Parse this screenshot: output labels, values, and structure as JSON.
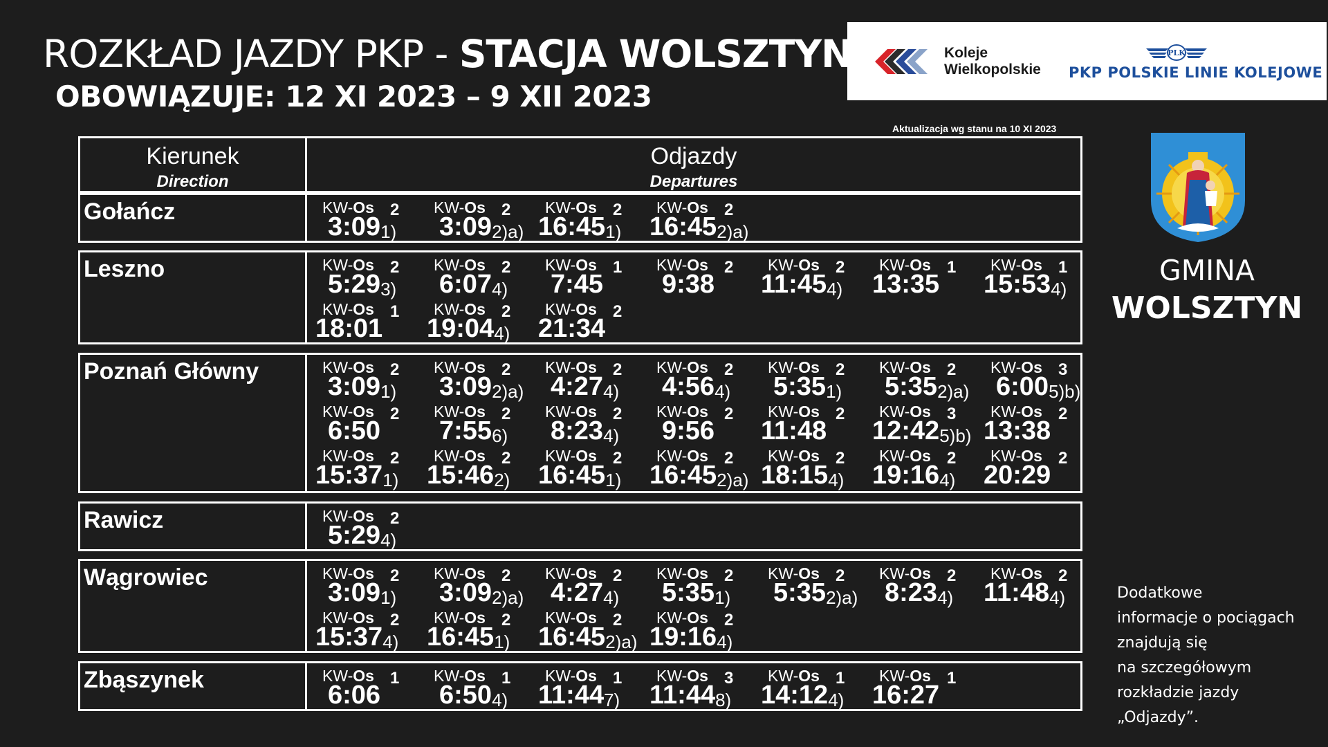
{
  "header": {
    "title_prefix": "ROZKŁAD JAZDY PKP - ",
    "title_station": "STACJA WOLSZTYN",
    "validity": "OBOWIĄZUJE: 12 XI 2023 – 9 XII 2023",
    "update_note": "Aktualizacja wg stanu na 10 XI 2023"
  },
  "logos": {
    "kw_line1": "Koleje",
    "kw_line2": "Wielkopolskie",
    "plk_mark": "PLK",
    "plk_name": "PKP POLSKIE LINIE KOLEJOWE S.A."
  },
  "table_header": {
    "direction_pl": "Kierunek",
    "direction_en": "Direction",
    "departures_pl": "Odjazdy",
    "departures_en": "Departures"
  },
  "sidebar": {
    "gmina_line1": "GMINA",
    "gmina_line2": "WOLSZTYN",
    "info_lines": [
      "Dodatkowe",
      "informacje o pociągach",
      "znajdują się",
      "na szczegółowym",
      "rozkładzie jazdy",
      "„Odjazdy”."
    ]
  },
  "colors": {
    "background": "#1d1d1d",
    "plk_blue": "#1d4f9c",
    "kw_red": "#d8232a",
    "kw_blue": "#2a4c9a"
  },
  "category_prefix": "KW-",
  "category_suffix": "Os",
  "destinations": [
    {
      "name": "Gołańcz",
      "rows": [
        [
          {
            "cls": "2",
            "time": "3:09",
            "note": "1)"
          },
          {
            "cls": "2",
            "time": "3:09",
            "note": "2)a)"
          },
          {
            "cls": "2",
            "time": "16:45",
            "note": "1)"
          },
          {
            "cls": "2",
            "time": "16:45",
            "note": "2)a)"
          }
        ]
      ]
    },
    {
      "name": "Leszno",
      "rows": [
        [
          {
            "cls": "2",
            "time": "5:29",
            "note": "3)"
          },
          {
            "cls": "2",
            "time": "6:07",
            "note": "4)"
          },
          {
            "cls": "1",
            "time": "7:45",
            "note": ""
          },
          {
            "cls": "2",
            "time": "9:38",
            "note": ""
          },
          {
            "cls": "2",
            "time": "11:45",
            "note": "4)"
          },
          {
            "cls": "1",
            "time": "13:35",
            "note": ""
          },
          {
            "cls": "1",
            "time": "15:53",
            "note": "4)"
          }
        ],
        [
          {
            "cls": "1",
            "time": "18:01",
            "note": ""
          },
          {
            "cls": "2",
            "time": "19:04",
            "note": "4)"
          },
          {
            "cls": "2",
            "time": "21:34",
            "note": ""
          }
        ]
      ]
    },
    {
      "name": "Poznań Główny",
      "rows": [
        [
          {
            "cls": "2",
            "time": "3:09",
            "note": "1)"
          },
          {
            "cls": "2",
            "time": "3:09",
            "note": "2)a)"
          },
          {
            "cls": "2",
            "time": "4:27",
            "note": "4)"
          },
          {
            "cls": "2",
            "time": "4:56",
            "note": "4)"
          },
          {
            "cls": "2",
            "time": "5:35",
            "note": "1)"
          },
          {
            "cls": "2",
            "time": "5:35",
            "note": "2)a)"
          },
          {
            "cls": "3",
            "time": "6:00",
            "note": "5)b)"
          }
        ],
        [
          {
            "cls": "2",
            "time": "6:50",
            "note": ""
          },
          {
            "cls": "2",
            "time": "7:55",
            "note": "6)"
          },
          {
            "cls": "2",
            "time": "8:23",
            "note": "4)"
          },
          {
            "cls": "2",
            "time": "9:56",
            "note": ""
          },
          {
            "cls": "2",
            "time": "11:48",
            "note": ""
          },
          {
            "cls": "3",
            "time": "12:42",
            "note": "5)b)"
          },
          {
            "cls": "2",
            "time": "13:38",
            "note": ""
          }
        ],
        [
          {
            "cls": "2",
            "time": "15:37",
            "note": "1)"
          },
          {
            "cls": "2",
            "time": "15:46",
            "note": "2)"
          },
          {
            "cls": "2",
            "time": "16:45",
            "note": "1)"
          },
          {
            "cls": "2",
            "time": "16:45",
            "note": "2)a)"
          },
          {
            "cls": "2",
            "time": "18:15",
            "note": "4)"
          },
          {
            "cls": "2",
            "time": "19:16",
            "note": "4)"
          },
          {
            "cls": "2",
            "time": "20:29",
            "note": ""
          }
        ]
      ]
    },
    {
      "name": "Rawicz",
      "rows": [
        [
          {
            "cls": "2",
            "time": "5:29",
            "note": "4)"
          }
        ]
      ]
    },
    {
      "name": "Wągrowiec",
      "rows": [
        [
          {
            "cls": "2",
            "time": "3:09",
            "note": "1)"
          },
          {
            "cls": "2",
            "time": "3:09",
            "note": "2)a)"
          },
          {
            "cls": "2",
            "time": "4:27",
            "note": "4)"
          },
          {
            "cls": "2",
            "time": "5:35",
            "note": "1)"
          },
          {
            "cls": "2",
            "time": "5:35",
            "note": "2)a)"
          },
          {
            "cls": "2",
            "time": "8:23",
            "note": "4)"
          },
          {
            "cls": "2",
            "time": "11:48",
            "note": "4)"
          }
        ],
        [
          {
            "cls": "2",
            "time": "15:37",
            "note": "4)"
          },
          {
            "cls": "2",
            "time": "16:45",
            "note": "1)"
          },
          {
            "cls": "2",
            "time": "16:45",
            "note": "2)a)"
          },
          {
            "cls": "2",
            "time": "19:16",
            "note": "4)"
          }
        ]
      ]
    },
    {
      "name": "Zbąszynek",
      "rows": [
        [
          {
            "cls": "1",
            "time": "6:06",
            "note": ""
          },
          {
            "cls": "1",
            "time": "6:50",
            "note": "4)"
          },
          {
            "cls": "1",
            "time": "11:44",
            "note": "7)"
          },
          {
            "cls": "3",
            "time": "11:44",
            "note": "8)"
          },
          {
            "cls": "1",
            "time": "14:12",
            "note": "4)"
          },
          {
            "cls": "1",
            "time": "16:27",
            "note": ""
          }
        ]
      ]
    }
  ]
}
